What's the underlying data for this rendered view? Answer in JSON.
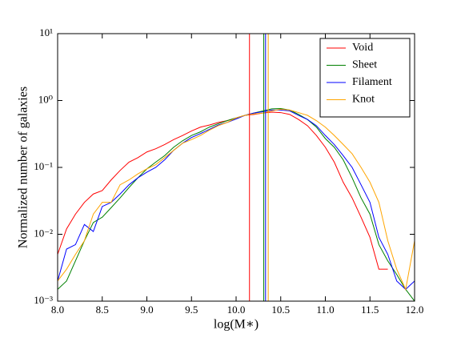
{
  "chart_data": {
    "type": "line",
    "xlabel": "log(M∗)",
    "ylabel": "Normalized number of galaxies",
    "yscale": "log",
    "x": [
      8.0,
      8.1,
      8.2,
      8.3,
      8.4,
      8.5,
      8.6,
      8.7,
      8.8,
      8.9,
      9.0,
      9.1,
      9.2,
      9.3,
      9.4,
      9.5,
      9.6,
      9.7,
      9.8,
      9.9,
      10.0,
      10.1,
      10.2,
      10.3,
      10.4,
      10.5,
      10.6,
      10.7,
      10.8,
      10.9,
      11.0,
      11.1,
      11.2,
      11.3,
      11.4,
      11.5,
      11.6,
      11.7,
      11.8,
      11.9,
      12.0
    ],
    "series": [
      {
        "name": "Void",
        "color": "#ff0000",
        "values": [
          0.005,
          0.012,
          0.02,
          0.03,
          0.04,
          0.045,
          0.065,
          0.09,
          0.12,
          0.14,
          0.17,
          0.19,
          0.22,
          0.26,
          0.3,
          0.35,
          0.4,
          0.43,
          0.47,
          0.5,
          0.55,
          0.6,
          0.62,
          0.65,
          0.67,
          0.66,
          0.62,
          0.52,
          0.42,
          0.3,
          0.2,
          0.12,
          0.06,
          0.035,
          0.018,
          0.009,
          0.003,
          0.003,
          null,
          null,
          null
        ]
      },
      {
        "name": "Sheet",
        "color": "#008000",
        "values": [
          0.0015,
          0.002,
          0.004,
          0.008,
          0.015,
          0.018,
          0.025,
          0.035,
          0.05,
          0.07,
          0.095,
          0.12,
          0.15,
          0.2,
          0.25,
          0.3,
          0.34,
          0.4,
          0.45,
          0.5,
          0.55,
          0.6,
          0.65,
          0.7,
          0.75,
          0.76,
          0.72,
          0.62,
          0.52,
          0.4,
          0.27,
          0.2,
          0.13,
          0.07,
          0.035,
          0.02,
          0.007,
          0.004,
          0.0025,
          0.0015,
          0.001
        ]
      },
      {
        "name": "Filament",
        "color": "#0000ff",
        "values": [
          0.002,
          0.006,
          0.007,
          0.014,
          0.011,
          0.026,
          0.03,
          0.04,
          0.055,
          0.07,
          0.085,
          0.1,
          0.13,
          0.18,
          0.23,
          0.28,
          0.32,
          0.37,
          0.43,
          0.47,
          0.53,
          0.6,
          0.65,
          0.68,
          0.72,
          0.72,
          0.7,
          0.6,
          0.52,
          0.42,
          0.3,
          0.22,
          0.15,
          0.1,
          0.055,
          0.03,
          0.009,
          0.005,
          0.002,
          0.0015,
          0.002
        ]
      },
      {
        "name": "Knot",
        "color": "#ffa500",
        "values": [
          0.002,
          0.003,
          0.005,
          0.008,
          0.02,
          0.03,
          0.03,
          0.055,
          0.065,
          0.08,
          0.095,
          0.11,
          0.14,
          0.18,
          0.23,
          0.26,
          0.3,
          0.36,
          0.42,
          0.47,
          0.55,
          0.6,
          0.63,
          0.65,
          0.7,
          0.74,
          0.72,
          0.66,
          0.6,
          0.5,
          0.4,
          0.3,
          0.22,
          0.16,
          0.1,
          0.06,
          0.03,
          0.008,
          0.003,
          0.0015,
          0.008
        ]
      }
    ],
    "vlines": [
      {
        "x": 10.15,
        "color": "#ff0000"
      },
      {
        "x": 10.31,
        "color": "#008000"
      },
      {
        "x": 10.33,
        "color": "#0000ff"
      },
      {
        "x": 10.36,
        "color": "#ffa500"
      }
    ],
    "xlim": [
      8,
      12
    ],
    "xticks": [
      {
        "value": 8,
        "label": "8.0"
      },
      {
        "value": 8.5,
        "label": "8.5"
      },
      {
        "value": 9,
        "label": "9.0"
      },
      {
        "value": 9.5,
        "label": "9.5"
      },
      {
        "value": 10,
        "label": "10.0"
      },
      {
        "value": 10.5,
        "label": "10.5"
      },
      {
        "value": 11,
        "label": "11.0"
      },
      {
        "value": 11.5,
        "label": "11.5"
      },
      {
        "value": 12,
        "label": "12.0"
      }
    ],
    "ylim": [
      0.001,
      10
    ],
    "yticks": [
      {
        "value": 0.001,
        "label": "10⁻³"
      },
      {
        "value": 0.01,
        "label": "10⁻²"
      },
      {
        "value": 0.1,
        "label": "10⁻¹"
      },
      {
        "value": 1,
        "label": "10⁰"
      },
      {
        "value": 10,
        "label": "10¹"
      }
    ],
    "legend": "upper right"
  }
}
